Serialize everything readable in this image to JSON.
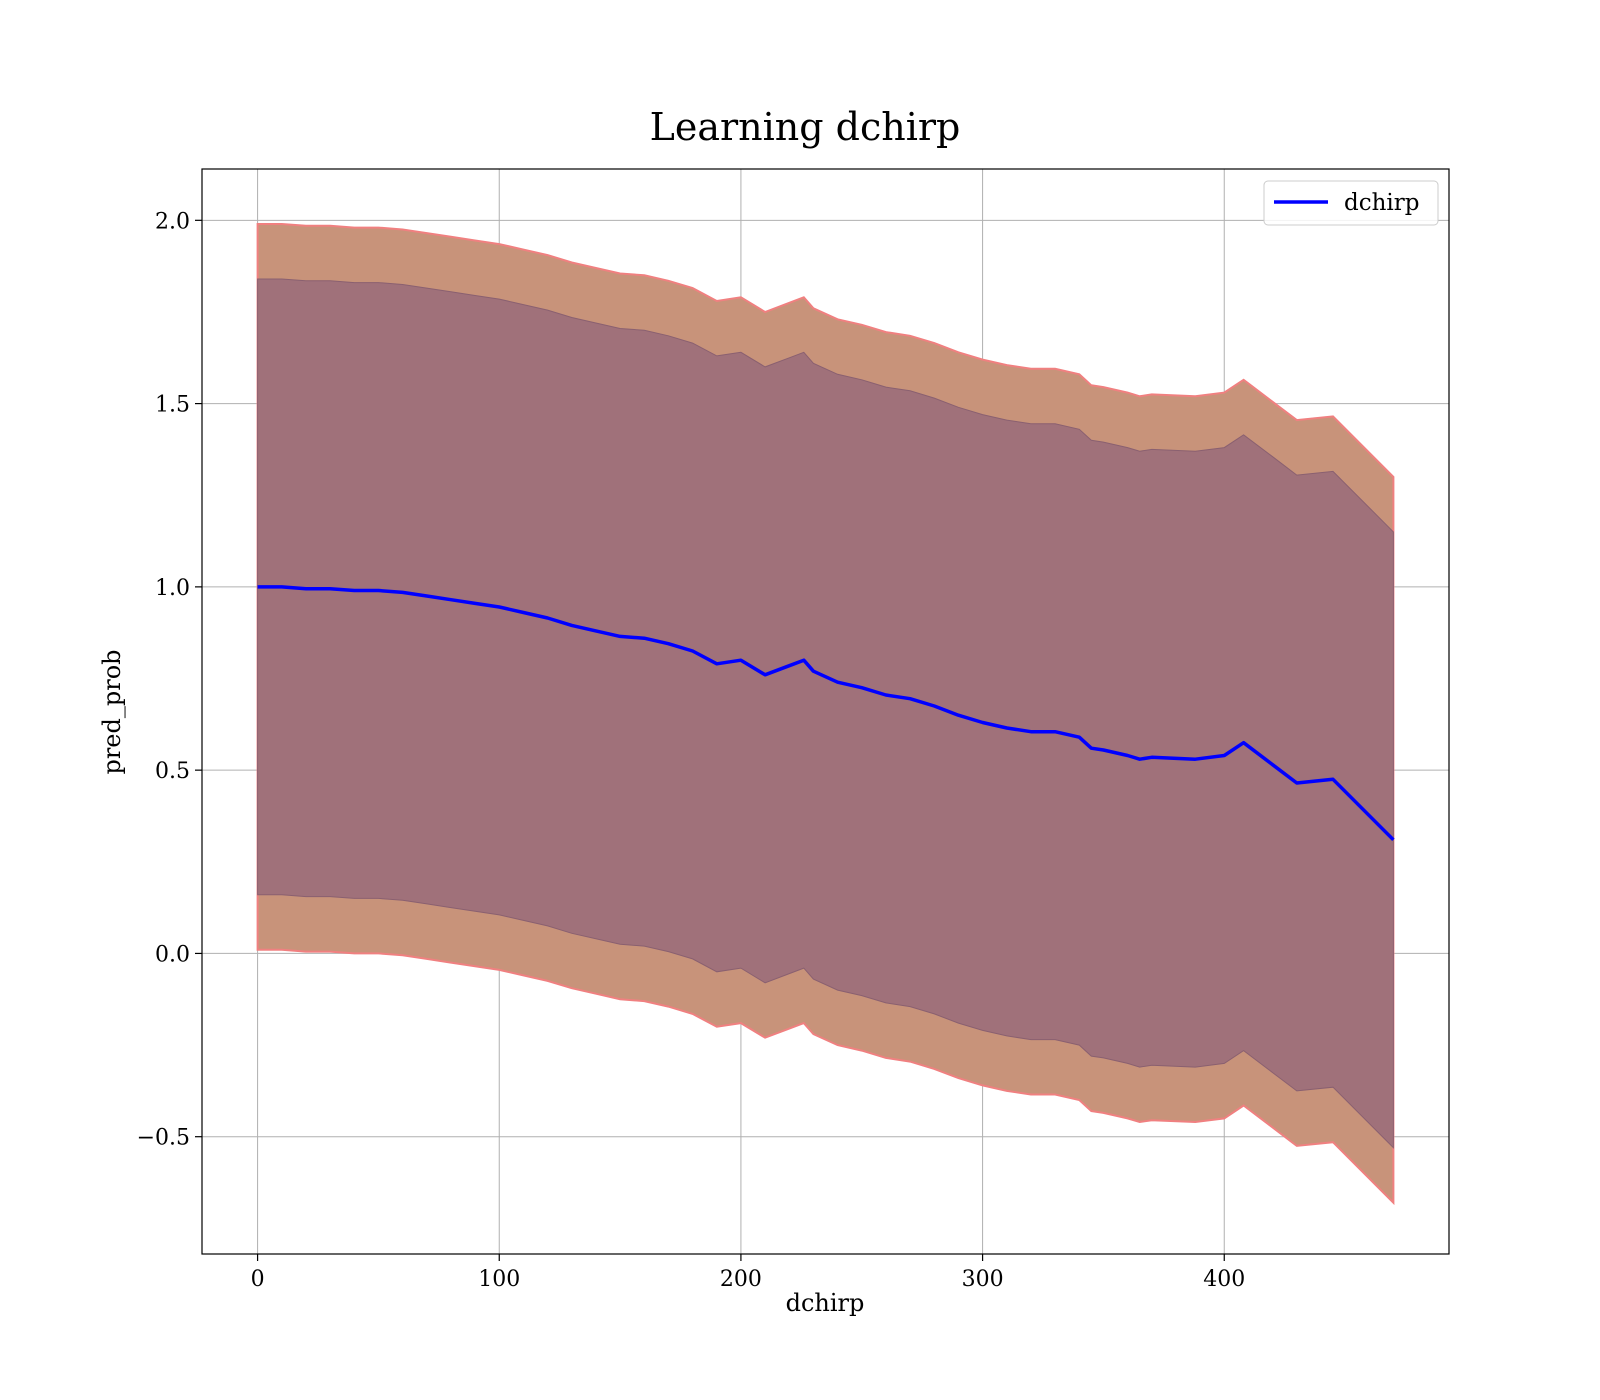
{
  "chart_data": {
    "type": "line",
    "title": "Learning dchirp",
    "xlabel": "dchirp",
    "ylabel": "pred_prob",
    "xlim": [
      -23,
      493
    ],
    "ylim": [
      -0.82,
      2.14
    ],
    "xticks": [
      0,
      100,
      200,
      300,
      400
    ],
    "yticks": [
      -0.5,
      0.0,
      0.5,
      1.0,
      1.5,
      2.0
    ],
    "xtick_labels": [
      "0",
      "100",
      "200",
      "300",
      "400"
    ],
    "ytick_labels": [
      "−0.5",
      "0.0",
      "0.5",
      "1.0",
      "1.5",
      "2.0"
    ],
    "grid": true,
    "legend_position": "top-right",
    "colors": {
      "line": "#0000ff",
      "outer_band": "#c8937a",
      "outer_band_edge": "#f08080",
      "inner_band": "#a0717a"
    },
    "series": [
      {
        "name": "dchirp",
        "x": [
          0,
          10,
          20,
          30,
          40,
          50,
          60,
          70,
          80,
          90,
          100,
          110,
          120,
          130,
          140,
          150,
          160,
          170,
          180,
          190,
          200,
          210,
          220,
          226,
          230,
          240,
          250,
          260,
          270,
          280,
          290,
          300,
          310,
          320,
          330,
          340,
          345,
          350,
          360,
          365,
          370,
          388,
          400,
          408,
          420,
          430,
          445,
          470
        ],
        "y": [
          1.0,
          1.0,
          0.995,
          0.995,
          0.99,
          0.99,
          0.985,
          0.975,
          0.965,
          0.955,
          0.945,
          0.93,
          0.915,
          0.895,
          0.88,
          0.865,
          0.86,
          0.845,
          0.825,
          0.79,
          0.8,
          0.76,
          0.785,
          0.8,
          0.77,
          0.74,
          0.725,
          0.705,
          0.695,
          0.675,
          0.65,
          0.63,
          0.615,
          0.605,
          0.605,
          0.59,
          0.56,
          0.555,
          0.54,
          0.53,
          0.535,
          0.53,
          0.54,
          0.575,
          0.515,
          0.465,
          0.475,
          0.31
        ],
        "inner_band_offset": [
          0.84,
          0.84,
          0.84,
          0.84,
          0.84,
          0.84,
          0.84,
          0.84,
          0.84,
          0.84,
          0.84,
          0.84,
          0.84,
          0.84,
          0.84,
          0.84,
          0.84,
          0.84,
          0.84,
          0.84,
          0.84,
          0.84,
          0.84,
          0.84,
          0.84,
          0.84,
          0.84,
          0.84,
          0.84,
          0.84,
          0.84,
          0.84,
          0.84,
          0.84,
          0.84,
          0.84,
          0.84,
          0.84,
          0.84,
          0.84,
          0.84,
          0.84,
          0.84,
          0.84,
          0.84,
          0.84,
          0.84,
          0.84
        ],
        "outer_band_offset": [
          0.99,
          0.99,
          0.99,
          0.99,
          0.99,
          0.99,
          0.99,
          0.99,
          0.99,
          0.99,
          0.99,
          0.99,
          0.99,
          0.99,
          0.99,
          0.99,
          0.99,
          0.99,
          0.99,
          0.99,
          0.99,
          0.99,
          0.99,
          0.99,
          0.99,
          0.99,
          0.99,
          0.99,
          0.99,
          0.99,
          0.99,
          0.99,
          0.99,
          0.99,
          0.99,
          0.99,
          0.99,
          0.99,
          0.99,
          0.99,
          0.99,
          0.99,
          0.99,
          0.99,
          0.99,
          0.99,
          0.99,
          0.99
        ]
      }
    ]
  }
}
